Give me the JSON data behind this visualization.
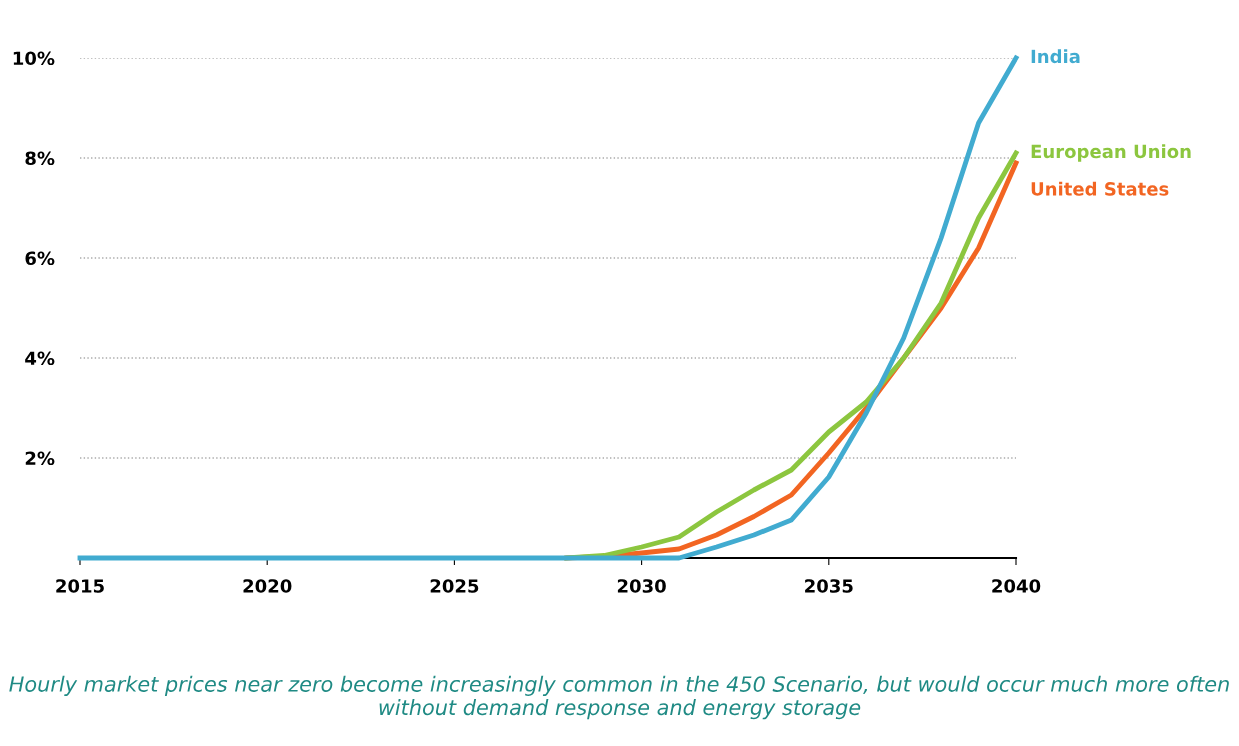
{
  "chart_data": {
    "type": "line",
    "x": [
      2015,
      2016,
      2017,
      2018,
      2019,
      2020,
      2021,
      2022,
      2023,
      2024,
      2025,
      2026,
      2027,
      2028,
      2029,
      2030,
      2031,
      2032,
      2033,
      2034,
      2035,
      2036,
      2037,
      2038,
      2039,
      2040
    ],
    "series": [
      {
        "name": "India",
        "color": "#41abd0",
        "values": [
          0,
          0,
          0,
          0,
          0,
          0,
          0,
          0,
          0,
          0,
          0,
          0,
          0,
          0,
          0,
          0,
          0,
          0.22,
          0.46,
          0.76,
          1.62,
          2.9,
          4.4,
          6.4,
          8.7,
          10.0
        ]
      },
      {
        "name": "European Union",
        "color": "#8cc63f",
        "values": [
          null,
          null,
          null,
          null,
          null,
          null,
          null,
          null,
          null,
          null,
          null,
          null,
          null,
          0,
          0.05,
          0.22,
          0.42,
          0.92,
          1.36,
          1.76,
          2.52,
          3.12,
          4.0,
          5.1,
          6.8,
          8.1
        ]
      },
      {
        "name": "United States",
        "color": "#f26522",
        "values": [
          null,
          null,
          null,
          null,
          null,
          null,
          null,
          null,
          null,
          null,
          null,
          null,
          null,
          0,
          0.03,
          0.1,
          0.18,
          0.46,
          0.83,
          1.26,
          2.1,
          3.0,
          4.0,
          5.0,
          6.2,
          7.9
        ]
      }
    ],
    "xlim": [
      2015,
      2040
    ],
    "xticks": [
      2015,
      2020,
      2025,
      2030,
      2035,
      2040
    ],
    "ylim": [
      0,
      10
    ],
    "yticks": [
      {
        "value": 0,
        "label": null
      },
      {
        "value": 2,
        "label": "2%"
      },
      {
        "value": 4,
        "label": "4%"
      },
      {
        "value": 6,
        "label": "6%"
      },
      {
        "value": 8,
        "label": "8%"
      },
      {
        "value": 10,
        "label": "10%"
      }
    ],
    "grid": "y",
    "legend": false,
    "marker": "none",
    "line_style": "solid",
    "annotations": [
      "Hourly market prices near zero become increasingly common in the 450 Scenario, but would occur much more often without demand response and energy storage"
    ]
  }
}
